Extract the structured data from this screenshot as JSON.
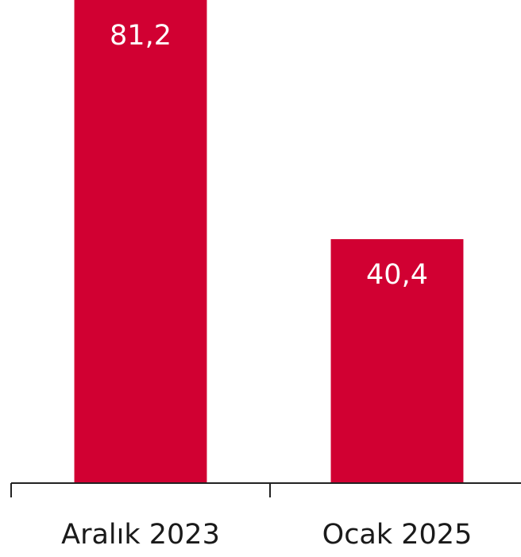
{
  "chart_data": {
    "type": "bar",
    "categories": [
      "Aralık 2023",
      "Ocak 2025"
    ],
    "values": [
      81.2,
      40.4
    ],
    "value_labels": [
      "81,2",
      "40,4"
    ],
    "color": "#d10032",
    "ylim": [
      0,
      80
    ]
  }
}
